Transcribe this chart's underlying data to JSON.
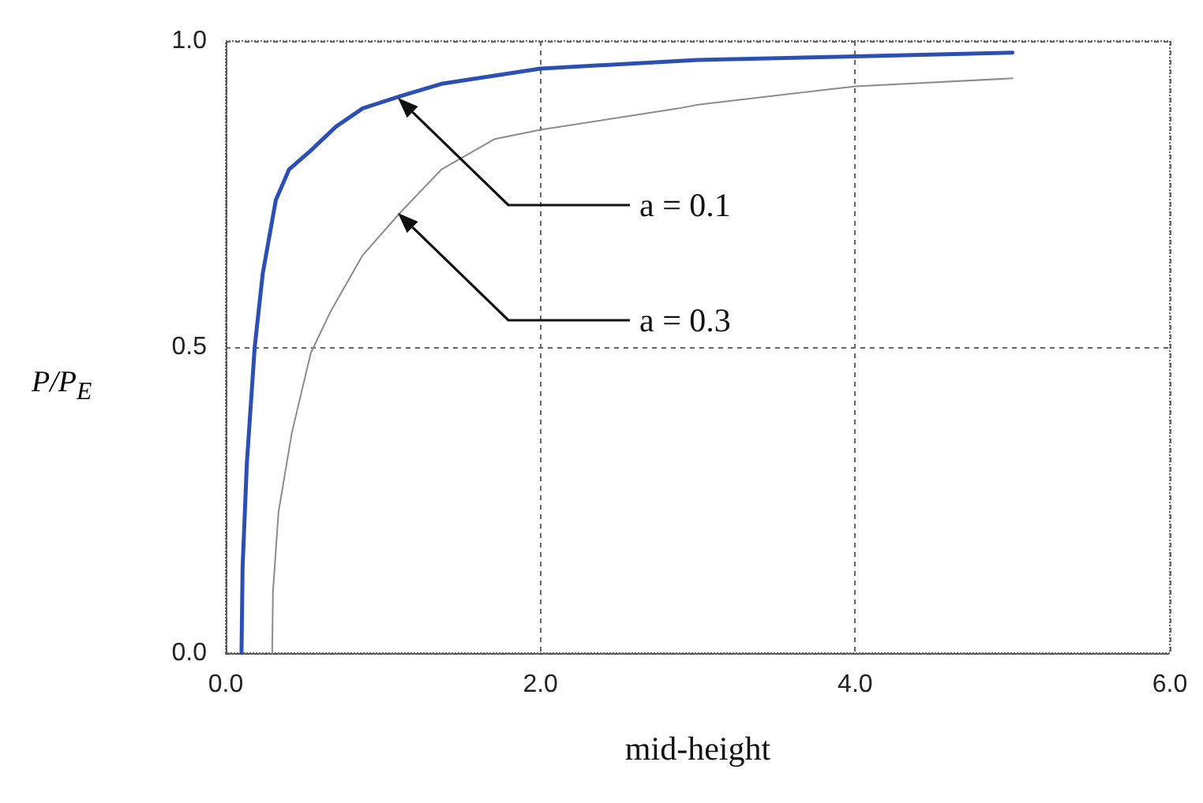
{
  "chart_data": {
    "type": "line",
    "xlabel": "mid-height",
    "ylabel": "P/P$_{E}$",
    "xlim": [
      0,
      6
    ],
    "xticks": [
      {
        "value": 0,
        "label": "0.0"
      },
      {
        "value": 2,
        "label": "2.0"
      },
      {
        "value": 4,
        "label": "4.0"
      },
      {
        "value": 6,
        "label": "6.0"
      }
    ],
    "ylim": [
      0,
      1
    ],
    "yticks": [
      {
        "value": 0,
        "label": "0.0"
      },
      {
        "value": 0.5,
        "label": "0.5"
      },
      {
        "value": 1,
        "label": "1.0"
      }
    ],
    "grid": true,
    "marker": "none",
    "line_style": "solid",
    "series": [
      {
        "color": "#2b4fb3",
        "x": [
          0.1,
          0.107,
          0.134,
          0.184,
          0.235,
          0.318,
          0.402,
          0.536,
          0.7,
          0.87,
          1.11,
          1.37,
          2.0,
          3.0,
          4.0,
          5.0
        ],
        "values": [
          0,
          0.14,
          0.31,
          0.5,
          0.62,
          0.74,
          0.79,
          0.82,
          0.86,
          0.89,
          0.91,
          0.93,
          0.955,
          0.969,
          0.975,
          0.981
        ]
      },
      {
        "color": "#8c8c8c",
        "x": [
          0.295,
          0.3,
          0.335,
          0.42,
          0.54,
          0.67,
          0.87,
          1.11,
          1.37,
          1.71,
          2.0,
          2.88,
          3.0,
          4.0,
          5.0
        ],
        "values": [
          0,
          0.1,
          0.23,
          0.36,
          0.49,
          0.56,
          0.65,
          0.72,
          0.79,
          0.84,
          0.855,
          0.89,
          0.896,
          0.926,
          0.939
        ]
      }
    ],
    "annotations": [
      "a = 0.1",
      "a = 0.3"
    ]
  }
}
